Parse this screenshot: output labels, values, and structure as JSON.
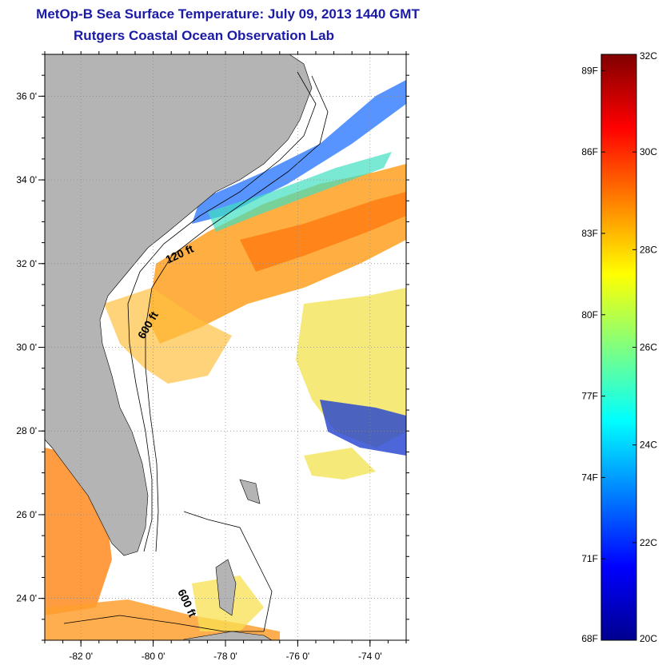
{
  "title": {
    "line1": "MetOp-B Sea Surface Temperature:  July 09, 2013 1440 GMT",
    "line2": "Rutgers Coastal Ocean Observation Lab"
  },
  "map": {
    "lon_range": [
      -83,
      -73
    ],
    "lat_range": [
      23,
      37
    ],
    "lon_ticks": [
      {
        "value": -82,
        "label": "-82 0'"
      },
      {
        "value": -80,
        "label": "-80 0'"
      },
      {
        "value": -78,
        "label": "-78 0'"
      },
      {
        "value": -76,
        "label": "-76 0'"
      },
      {
        "value": -74,
        "label": "-74 0'"
      }
    ],
    "lat_ticks": [
      {
        "value": 24,
        "label": "24 0'"
      },
      {
        "value": 26,
        "label": "26 0'"
      },
      {
        "value": 28,
        "label": "28 0'"
      },
      {
        "value": 30,
        "label": "30 0'"
      },
      {
        "value": 32,
        "label": "32 0'"
      },
      {
        "value": 34,
        "label": "34 0'"
      },
      {
        "value": 36,
        "label": "36 0'"
      }
    ],
    "grid": "dotted",
    "land_color": "#b4b4b4",
    "contour_labels": [
      "120 ft",
      "600 ft",
      "600 ft"
    ]
  },
  "colorbar": {
    "min_c": 20,
    "max_c": 32,
    "celsius_labels": [
      "32C",
      "30C",
      "28C",
      "26C",
      "24C",
      "22C",
      "20C"
    ],
    "fahrenheit_labels": [
      "89F",
      "86F",
      "83F",
      "80F",
      "77F",
      "74F",
      "71F",
      "68F"
    ],
    "colors": [
      "#00008f",
      "#0000ff",
      "#0080ff",
      "#00ffff",
      "#80ff80",
      "#ffff00",
      "#ff8000",
      "#ff0000",
      "#800000"
    ]
  }
}
